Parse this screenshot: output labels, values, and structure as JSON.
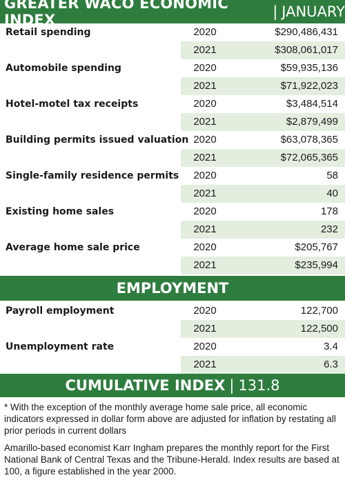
{
  "header": {
    "title": "GREATER WACO ECONOMIC INDEX",
    "separator": "|",
    "month": "JANUARY"
  },
  "economic_rows": [
    {
      "label": "Retail spending",
      "y1": "2020",
      "v1": "$290,486,431",
      "y2": "2021",
      "v2": "$308,061,017"
    },
    {
      "label": "Automobile spending",
      "y1": "2020",
      "v1": "$59,935,136",
      "y2": "2021",
      "v2": "$71,922,023"
    },
    {
      "label": "Hotel-motel tax receipts",
      "y1": "2020",
      "v1": "$3,484,514",
      "y2": "2021",
      "v2": "$2,879,499"
    },
    {
      "label": "Building permits issued valuation",
      "y1": "2020",
      "v1": "$63,078,365",
      "y2": "2021",
      "v2": "$72,065,365"
    },
    {
      "label": "Single-family residence permits",
      "y1": "2020",
      "v1": "58",
      "y2": "2021",
      "v2": "40"
    },
    {
      "label": "Existing home sales",
      "y1": "2020",
      "v1": "178",
      "y2": "2021",
      "v2": "232"
    },
    {
      "label": "Average home sale price",
      "y1": "2020",
      "v1": "$205,767",
      "y2": "2021",
      "v2": "$235,994"
    }
  ],
  "employment": {
    "title": "EMPLOYMENT",
    "rows": [
      {
        "label": "Payroll employment",
        "y1": "2020",
        "v1": "122,700",
        "y2": "2021",
        "v2": "122,500"
      },
      {
        "label": "Unemployment rate",
        "y1": "2020",
        "v1": "3.4",
        "y2": "2021",
        "v2": "6.3"
      }
    ]
  },
  "cumulative": {
    "label": "CUMULATIVE INDEX",
    "separator": "|",
    "value": "131.8"
  },
  "notes": {
    "footnote": "* With the exception of the monthly average home sale price, all economic indicators expressed in dollar form above are adjusted for inflation by restating all prior periods in current dollars",
    "credit": "Amarillo-based economist Karr Ingham prepares the monthly report for the First National Bank of Central Texas and the Tribune-Herald. Index results are based at 100, a figure established in the year 2000."
  },
  "colors": {
    "accent": "#2e7d3e",
    "shade": "#e4eedf"
  }
}
